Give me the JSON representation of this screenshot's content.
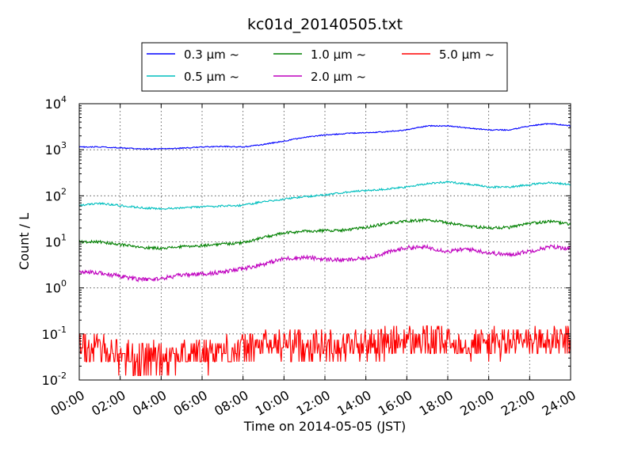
{
  "chart_data": {
    "type": "line",
    "title": "kc01d_20140505.txt",
    "xlabel": "Time on 2014-05-05 (JST)",
    "ylabel": "Count / L",
    "xlim": [
      "00:00",
      "24:00"
    ],
    "ylim": [
      0.01,
      10000
    ],
    "yscale": "log",
    "grid": true,
    "legend_placement": "top-center",
    "x_tick_labels": [
      "00:00",
      "02:00",
      "04:00",
      "06:00",
      "08:00",
      "10:00",
      "12:00",
      "14:00",
      "16:00",
      "18:00",
      "20:00",
      "22:00",
      "24:00"
    ],
    "y_tick_labels": [
      {
        "base": "10",
        "exp": "-2"
      },
      {
        "base": "10",
        "exp": "-1"
      },
      {
        "base": "10",
        "exp": "0"
      },
      {
        "base": "10",
        "exp": "1"
      },
      {
        "base": "10",
        "exp": "2"
      },
      {
        "base": "10",
        "exp": "3"
      },
      {
        "base": "10",
        "exp": "4"
      }
    ],
    "x_hours": [
      0,
      1,
      2,
      3,
      4,
      5,
      6,
      7,
      8,
      9,
      10,
      11,
      12,
      13,
      14,
      15,
      16,
      17,
      18,
      19,
      20,
      21,
      22,
      23,
      24
    ],
    "series": [
      {
        "name": "0.3 μm ~",
        "color": "#0000ff",
        "noise": 0.012,
        "values": [
          1150,
          1150,
          1100,
          1050,
          1050,
          1080,
          1150,
          1180,
          1150,
          1300,
          1550,
          1850,
          2100,
          2250,
          2350,
          2450,
          2700,
          3300,
          3300,
          2950,
          2700,
          2700,
          3300,
          3700,
          3300
        ]
      },
      {
        "name": "0.5 μm ~",
        "color": "#00bfbf",
        "noise": 0.02,
        "values": [
          62,
          68,
          62,
          55,
          52,
          54,
          58,
          60,
          62,
          75,
          85,
          95,
          105,
          120,
          130,
          140,
          155,
          185,
          200,
          180,
          155,
          155,
          175,
          195,
          175
        ]
      },
      {
        "name": "1.0 μm ~",
        "color": "#008000",
        "noise": 0.03,
        "values": [
          10,
          10,
          8.8,
          7.5,
          7.3,
          7.8,
          8.3,
          9.0,
          9.6,
          12.5,
          15.5,
          17.0,
          17.5,
          18.0,
          20.5,
          25.0,
          28.0,
          30.0,
          26.0,
          22.0,
          20.0,
          20.5,
          25.0,
          28.0,
          24.0
        ]
      },
      {
        "name": "2.0 μm ~",
        "color": "#bf00bf",
        "noise": 0.045,
        "values": [
          2.2,
          2.1,
          1.8,
          1.5,
          1.6,
          1.9,
          2.0,
          2.2,
          2.6,
          3.3,
          4.3,
          4.6,
          4.2,
          4.0,
          4.4,
          5.8,
          7.5,
          7.6,
          6.2,
          7.0,
          5.8,
          5.2,
          6.3,
          7.8,
          7.2
        ]
      },
      {
        "name": "5.0 μm ~",
        "color": "#ff0000",
        "noise": 0.35,
        "values": [
          0.05,
          0.045,
          0.035,
          0.03,
          0.032,
          0.035,
          0.038,
          0.042,
          0.045,
          0.055,
          0.06,
          0.058,
          0.055,
          0.056,
          0.06,
          0.065,
          0.07,
          0.068,
          0.065,
          0.063,
          0.062,
          0.064,
          0.068,
          0.07,
          0.065
        ]
      }
    ]
  }
}
